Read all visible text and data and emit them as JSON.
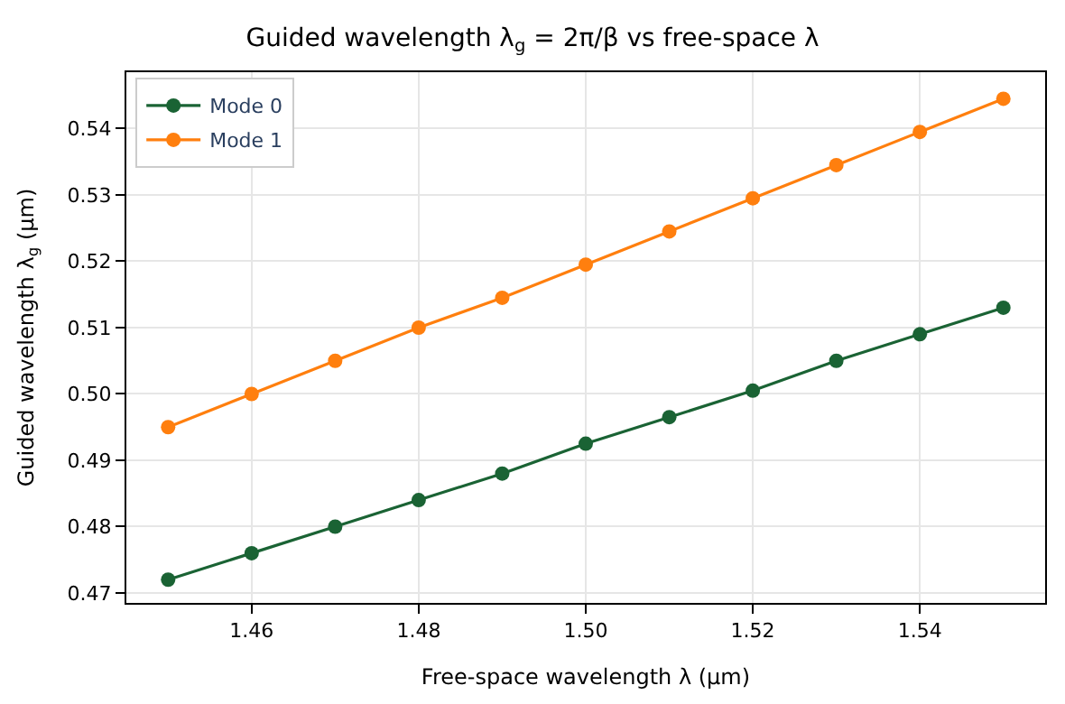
{
  "chart_data": {
    "type": "line",
    "title": "Guided wavelength λ$_{g}$ = 2π/β vs free-space λ",
    "xlabel": "Free-space wavelength λ (µm)",
    "ylabel": "Guided wavelength λ$_{g}$ (µm)",
    "x": [
      1.45,
      1.46,
      1.47,
      1.48,
      1.49,
      1.5,
      1.51,
      1.52,
      1.53,
      1.54,
      1.55
    ],
    "series": [
      {
        "name": "Mode 0",
        "color": "#1a6334",
        "values": [
          0.472,
          0.476,
          0.48,
          0.484,
          0.488,
          0.4925,
          0.4965,
          0.5005,
          0.505,
          0.509,
          0.513
        ]
      },
      {
        "name": "Mode 1",
        "color": "#ff7f0e",
        "values": [
          0.495,
          0.5,
          0.505,
          0.51,
          0.5145,
          0.5195,
          0.5245,
          0.5295,
          0.5345,
          0.5395,
          0.5445
        ]
      }
    ],
    "xlim": [
      1.445,
      1.555
    ],
    "ylim": [
      0.4685,
      0.5485
    ],
    "xticks": [
      {
        "value": 1.46,
        "label": "1.46"
      },
      {
        "value": 1.48,
        "label": "1.48"
      },
      {
        "value": 1.5,
        "label": "1.50"
      },
      {
        "value": 1.52,
        "label": "1.52"
      },
      {
        "value": 1.54,
        "label": "1.54"
      }
    ],
    "yticks": [
      0.47,
      0.48,
      0.49,
      {
        "value": 0.5,
        "label": "0.50"
      },
      0.51,
      0.52,
      0.53,
      0.54
    ],
    "grid": true,
    "legend": "top left",
    "marker": "circle",
    "line_style": "solid"
  }
}
